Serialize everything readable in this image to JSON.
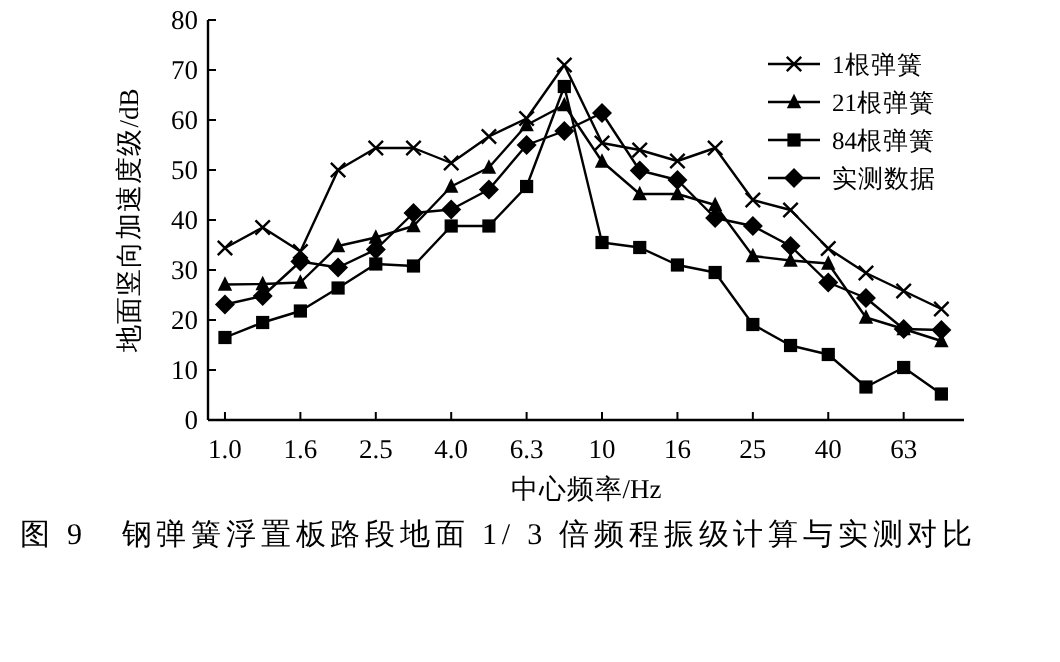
{
  "chart_data": {
    "type": "line",
    "xlabel": "中心频率/Hz",
    "ylabel": "地面竖向加速度级/dB",
    "annotations": [
      "图 9　钢弹簧浮置板路段地面 1/ 3 倍频程振级计算与实测对比"
    ],
    "categories": [
      "1.0",
      null,
      "1.6",
      null,
      "2.5",
      null,
      "4.0",
      null,
      "6.3",
      null,
      "10",
      null,
      "16",
      null,
      "25",
      null,
      "40",
      null,
      "63",
      null
    ],
    "series": [
      {
        "name": "1根弹簧",
        "color": "#000000",
        "marker": "cross",
        "values": [
          34.4,
          38.5,
          33.7,
          50,
          54.4,
          54.4,
          51.4,
          56.7,
          60.3,
          71,
          55.4,
          54,
          51.8,
          54.4,
          44,
          42,
          34.3,
          29.4,
          25.8,
          22.2
        ]
      },
      {
        "name": "21根弹簧",
        "color": "#000000",
        "marker": "triangle",
        "values": [
          27.1,
          27.2,
          27.5,
          34.8,
          36.5,
          38.8,
          46.7,
          50.5,
          59,
          63,
          51.7,
          45.2,
          45.2,
          43,
          32.8,
          31.9,
          31.3,
          20.5,
          18.2,
          15.8
        ]
      },
      {
        "name": "84根弹簧",
        "color": "#000000",
        "marker": "square",
        "values": [
          16.5,
          19.5,
          21.8,
          26.4,
          31.2,
          30.8,
          38.8,
          38.8,
          46.7,
          66.7,
          35.5,
          34.5,
          31,
          29.5,
          19.1,
          14.9,
          13.1,
          6.6,
          10.5,
          5.2
        ]
      },
      {
        "name": "实测数据",
        "color": "#000000",
        "marker": "diamond",
        "values": [
          23.1,
          24.8,
          31.7,
          30.5,
          34.1,
          41.4,
          42.1,
          46.1,
          55,
          57.8,
          61.4,
          49.9,
          48,
          40.4,
          38.8,
          34.8,
          27.5,
          24.4,
          18.2,
          18
        ]
      }
    ],
    "ylim": [
      0,
      80
    ],
    "yticks": [
      0,
      10,
      20,
      30,
      40,
      50,
      60,
      70,
      80
    ],
    "legend": "top right",
    "line_style": "solid",
    "grid": false
  }
}
